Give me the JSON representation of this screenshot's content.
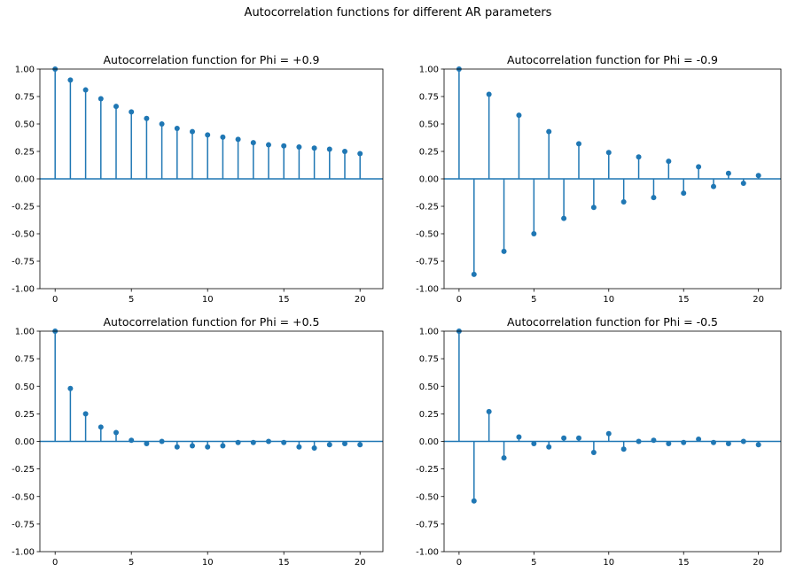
{
  "figure": {
    "suptitle": "Autocorrelation functions for different AR parameters",
    "colors": {
      "stem": "#1f77b4",
      "axis": "#000000",
      "background": "#ffffff"
    }
  },
  "chart_data": [
    {
      "type": "stem",
      "title": "Autocorrelation function for Phi = +0.9",
      "xlabel": "",
      "ylabel": "",
      "xlim": [
        -1,
        21.5
      ],
      "ylim": [
        -1,
        1
      ],
      "xticks": [
        "0",
        "5",
        "10",
        "15",
        "20"
      ],
      "yticks": [
        "1.00",
        "0.75",
        "0.50",
        "0.25",
        "0.00",
        "-0.25",
        "-0.50",
        "-0.75",
        "-1.00"
      ],
      "grid": false,
      "x": [
        0,
        1,
        2,
        3,
        4,
        5,
        6,
        7,
        8,
        9,
        10,
        11,
        12,
        13,
        14,
        15,
        16,
        17,
        18,
        19,
        20
      ],
      "values": [
        1.0,
        0.9,
        0.81,
        0.73,
        0.66,
        0.61,
        0.55,
        0.5,
        0.46,
        0.43,
        0.4,
        0.38,
        0.36,
        0.33,
        0.31,
        0.3,
        0.29,
        0.28,
        0.27,
        0.25,
        0.23
      ]
    },
    {
      "type": "stem",
      "title": "Autocorrelation function for Phi = -0.9",
      "xlabel": "",
      "ylabel": "",
      "xlim": [
        -1,
        21.5
      ],
      "ylim": [
        -1,
        1
      ],
      "xticks": [
        "0",
        "5",
        "10",
        "15",
        "20"
      ],
      "yticks": [
        "1.00",
        "0.75",
        "0.50",
        "0.25",
        "0.00",
        "-0.25",
        "-0.50",
        "-0.75",
        "-1.00"
      ],
      "grid": false,
      "x": [
        0,
        1,
        2,
        3,
        4,
        5,
        6,
        7,
        8,
        9,
        10,
        11,
        12,
        13,
        14,
        15,
        16,
        17,
        18,
        19,
        20
      ],
      "values": [
        1.0,
        -0.87,
        0.77,
        -0.66,
        0.58,
        -0.5,
        0.43,
        -0.36,
        0.32,
        -0.26,
        0.24,
        -0.21,
        0.2,
        -0.17,
        0.16,
        -0.13,
        0.11,
        -0.07,
        0.05,
        -0.04,
        0.03
      ]
    },
    {
      "type": "stem",
      "title": "Autocorrelation function for Phi = +0.5",
      "xlabel": "",
      "ylabel": "",
      "xlim": [
        -1,
        21.5
      ],
      "ylim": [
        -1,
        1
      ],
      "xticks": [
        "0",
        "5",
        "10",
        "15",
        "20"
      ],
      "yticks": [
        "1.00",
        "0.75",
        "0.50",
        "0.25",
        "0.00",
        "-0.25",
        "-0.50",
        "-0.75",
        "-1.00"
      ],
      "grid": false,
      "x": [
        0,
        1,
        2,
        3,
        4,
        5,
        6,
        7,
        8,
        9,
        10,
        11,
        12,
        13,
        14,
        15,
        16,
        17,
        18,
        19,
        20
      ],
      "values": [
        1.0,
        0.48,
        0.25,
        0.13,
        0.08,
        0.01,
        -0.02,
        0.0,
        -0.05,
        -0.04,
        -0.05,
        -0.04,
        -0.01,
        -0.01,
        0.0,
        -0.01,
        -0.05,
        -0.06,
        -0.03,
        -0.02,
        -0.03
      ]
    },
    {
      "type": "stem",
      "title": "Autocorrelation function for Phi = -0.5",
      "xlabel": "",
      "ylabel": "",
      "xlim": [
        -1,
        21.5
      ],
      "ylim": [
        -1,
        1
      ],
      "xticks": [
        "0",
        "5",
        "10",
        "15",
        "20"
      ],
      "yticks": [
        "1.00",
        "0.75",
        "0.50",
        "0.25",
        "0.00",
        "-0.25",
        "-0.50",
        "-0.75",
        "-1.00"
      ],
      "grid": false,
      "x": [
        0,
        1,
        2,
        3,
        4,
        5,
        6,
        7,
        8,
        9,
        10,
        11,
        12,
        13,
        14,
        15,
        16,
        17,
        18,
        19,
        20
      ],
      "values": [
        1.0,
        -0.54,
        0.27,
        -0.15,
        0.04,
        -0.02,
        -0.05,
        0.03,
        0.03,
        -0.1,
        0.07,
        -0.07,
        0.0,
        0.01,
        -0.02,
        -0.01,
        0.02,
        -0.01,
        -0.02,
        0.0,
        -0.03
      ]
    }
  ]
}
